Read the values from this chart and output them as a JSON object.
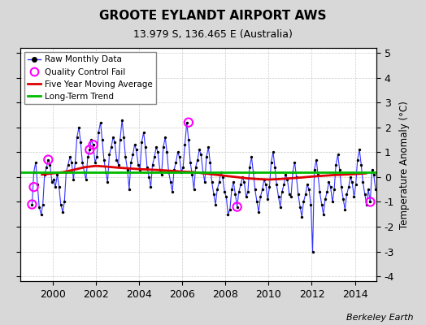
{
  "title": "GROOTE EYLANDT AIRPORT AWS",
  "subtitle": "13.979 S, 136.465 E (Australia)",
  "ylabel": "Temperature Anomaly (°C)",
  "credit": "Berkeley Earth",
  "xlim": [
    1998.5,
    2015.0
  ],
  "ylim": [
    -4.2,
    5.2
  ],
  "yticks": [
    -4,
    -3,
    -2,
    -1,
    0,
    1,
    2,
    3,
    4,
    5
  ],
  "xticks": [
    2000,
    2002,
    2004,
    2006,
    2008,
    2010,
    2012,
    2014
  ],
  "bg_color": "#d8d8d8",
  "plot_bg": "#ffffff",
  "line_color": "#3333ff",
  "dot_color": "#000000",
  "ma_color": "#dd0000",
  "trend_color": "#00bb00",
  "qc_color": "#ff00ff",
  "times": [
    1999.04,
    1999.12,
    1999.21,
    1999.29,
    1999.37,
    1999.46,
    1999.54,
    1999.62,
    1999.71,
    1999.79,
    1999.87,
    1999.96,
    2000.04,
    2000.12,
    2000.21,
    2000.29,
    2000.37,
    2000.46,
    2000.54,
    2000.62,
    2000.71,
    2000.79,
    2000.87,
    2000.96,
    2001.04,
    2001.12,
    2001.21,
    2001.29,
    2001.37,
    2001.46,
    2001.54,
    2001.62,
    2001.71,
    2001.79,
    2001.87,
    2001.96,
    2002.04,
    2002.12,
    2002.21,
    2002.29,
    2002.37,
    2002.46,
    2002.54,
    2002.62,
    2002.71,
    2002.79,
    2002.87,
    2002.96,
    2003.04,
    2003.12,
    2003.21,
    2003.29,
    2003.37,
    2003.46,
    2003.54,
    2003.62,
    2003.71,
    2003.79,
    2003.87,
    2003.96,
    2004.04,
    2004.12,
    2004.21,
    2004.29,
    2004.37,
    2004.46,
    2004.54,
    2004.62,
    2004.71,
    2004.79,
    2004.87,
    2004.96,
    2005.04,
    2005.12,
    2005.21,
    2005.29,
    2005.37,
    2005.46,
    2005.54,
    2005.62,
    2005.71,
    2005.79,
    2005.87,
    2005.96,
    2006.04,
    2006.12,
    2006.21,
    2006.29,
    2006.37,
    2006.46,
    2006.54,
    2006.62,
    2006.71,
    2006.79,
    2006.87,
    2006.96,
    2007.04,
    2007.12,
    2007.21,
    2007.29,
    2007.37,
    2007.46,
    2007.54,
    2007.62,
    2007.71,
    2007.79,
    2007.87,
    2007.96,
    2008.04,
    2008.12,
    2008.21,
    2008.29,
    2008.37,
    2008.46,
    2008.54,
    2008.62,
    2008.71,
    2008.79,
    2008.87,
    2008.96,
    2009.04,
    2009.12,
    2009.21,
    2009.29,
    2009.37,
    2009.46,
    2009.54,
    2009.62,
    2009.71,
    2009.79,
    2009.87,
    2009.96,
    2010.04,
    2010.12,
    2010.21,
    2010.29,
    2010.37,
    2010.46,
    2010.54,
    2010.62,
    2010.71,
    2010.79,
    2010.87,
    2010.96,
    2011.04,
    2011.12,
    2011.21,
    2011.29,
    2011.37,
    2011.46,
    2011.54,
    2011.62,
    2011.71,
    2011.79,
    2011.87,
    2011.96,
    2012.04,
    2012.12,
    2012.21,
    2012.29,
    2012.37,
    2012.46,
    2012.54,
    2012.62,
    2012.71,
    2012.79,
    2012.87,
    2012.96,
    2013.04,
    2013.12,
    2013.21,
    2013.29,
    2013.37,
    2013.46,
    2013.54,
    2013.62,
    2013.71,
    2013.79,
    2013.87,
    2013.96,
    2014.04,
    2014.12,
    2014.21,
    2014.29,
    2014.37,
    2014.46,
    2014.54,
    2014.62,
    2014.71,
    2014.79,
    2014.87,
    2014.96
  ],
  "values": [
    -1.1,
    0.2,
    0.6,
    -0.3,
    -1.2,
    -1.5,
    -1.1,
    0.1,
    0.4,
    0.7,
    0.5,
    -0.2,
    -0.1,
    -0.4,
    0.1,
    -0.4,
    -1.1,
    -1.4,
    -1.0,
    0.2,
    0.5,
    0.8,
    0.6,
    -0.1,
    0.6,
    1.6,
    2.0,
    1.4,
    0.6,
    0.2,
    -0.1,
    0.8,
    1.1,
    1.5,
    1.3,
    0.6,
    0.8,
    1.8,
    2.2,
    1.5,
    0.7,
    0.2,
    -0.2,
    0.9,
    1.2,
    1.6,
    1.4,
    0.7,
    0.5,
    1.5,
    2.3,
    1.6,
    0.8,
    0.3,
    -0.5,
    0.6,
    0.9,
    1.3,
    1.1,
    0.5,
    0.3,
    1.4,
    1.8,
    1.2,
    0.4,
    0.0,
    -0.4,
    0.5,
    0.8,
    1.2,
    1.0,
    0.3,
    0.1,
    1.2,
    1.6,
    1.0,
    0.2,
    -0.2,
    -0.6,
    0.3,
    0.6,
    1.0,
    0.8,
    0.2,
    0.4,
    1.3,
    2.2,
    1.5,
    0.6,
    0.1,
    -0.5,
    0.4,
    0.7,
    1.1,
    0.9,
    0.2,
    -0.2,
    0.8,
    1.2,
    0.6,
    -0.2,
    -0.7,
    -1.1,
    -0.5,
    -0.2,
    0.2,
    0.0,
    -0.6,
    -0.8,
    -1.5,
    -1.3,
    -0.5,
    -0.2,
    -0.7,
    -1.2,
    -0.6,
    -0.3,
    -0.0,
    -0.2,
    -0.8,
    -0.6,
    0.4,
    0.8,
    0.2,
    -0.5,
    -1.0,
    -1.4,
    -0.8,
    -0.5,
    -0.1,
    -0.3,
    -0.9,
    -0.4,
    0.6,
    1.0,
    0.4,
    -0.3,
    -0.8,
    -1.2,
    -0.6,
    -0.3,
    0.1,
    -0.1,
    -0.7,
    -0.8,
    0.2,
    0.6,
    0.0,
    -0.7,
    -1.2,
    -1.6,
    -1.0,
    -0.7,
    -0.3,
    -0.5,
    -1.1,
    -3.0,
    0.3,
    0.7,
    0.1,
    -0.6,
    -1.1,
    -1.5,
    -0.9,
    -0.6,
    -0.2,
    -0.4,
    -1.0,
    -0.5,
    0.5,
    0.9,
    0.3,
    -0.4,
    -0.9,
    -1.3,
    -0.7,
    -0.4,
    0.0,
    -0.2,
    -0.8,
    -0.3,
    0.7,
    1.1,
    0.5,
    -0.2,
    -0.7,
    -1.1,
    -0.5,
    -1.0,
    0.3,
    0.1,
    -0.5
  ],
  "qc_times": [
    1999.04,
    1999.12,
    1999.79,
    2001.71,
    2001.87,
    2006.29,
    2008.54,
    2014.71
  ],
  "qc_values": [
    -1.1,
    -0.4,
    0.7,
    1.1,
    1.3,
    2.2,
    -1.2,
    -1.0
  ],
  "ma_times": [
    1999.5,
    2000.0,
    2000.5,
    2001.0,
    2001.5,
    2002.0,
    2002.5,
    2003.0,
    2003.5,
    2004.0,
    2004.5,
    2005.0,
    2005.5,
    2006.0,
    2006.5,
    2007.0,
    2007.5,
    2008.0,
    2008.5,
    2009.0,
    2009.5,
    2010.0,
    2010.5,
    2011.0,
    2011.5,
    2012.0,
    2012.5,
    2013.0,
    2013.5,
    2014.0,
    2014.5
  ],
  "ma_values": [
    0.1,
    0.15,
    0.2,
    0.3,
    0.4,
    0.45,
    0.42,
    0.38,
    0.35,
    0.32,
    0.3,
    0.28,
    0.25,
    0.22,
    0.2,
    0.15,
    0.1,
    0.05,
    0.0,
    -0.05,
    -0.08,
    -0.1,
    -0.08,
    -0.05,
    -0.02,
    0.02,
    0.05,
    0.08,
    0.1,
    0.12,
    0.15
  ],
  "trend_times": [
    1998.5,
    2015.0
  ],
  "trend_values": [
    0.2,
    0.2
  ]
}
